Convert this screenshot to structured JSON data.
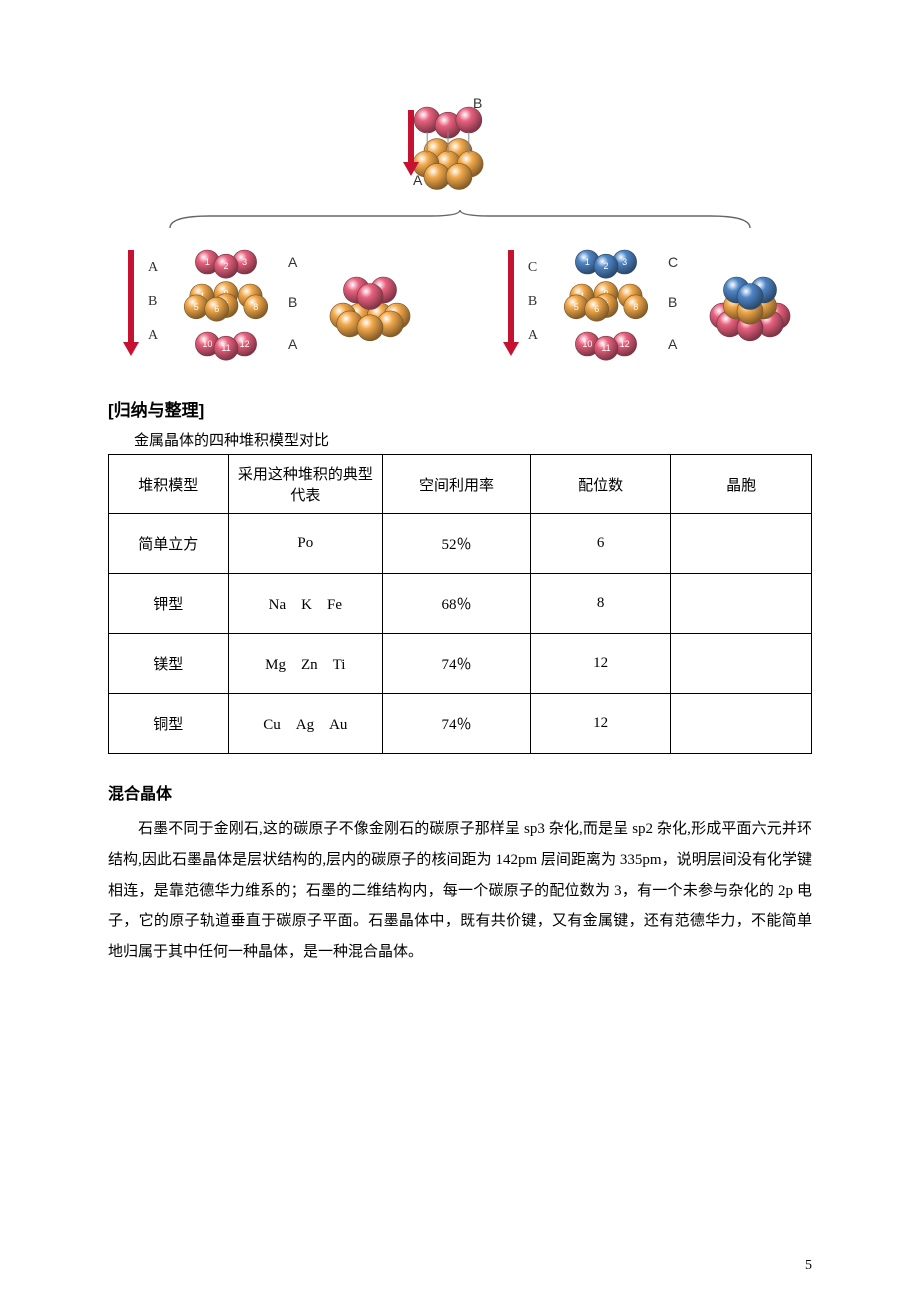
{
  "diagram": {
    "top": {
      "labels": {
        "upper": "B",
        "lower": "A"
      },
      "arrow_color": "#c41230",
      "upper_row_color": "#e8617f",
      "lower_row_color": "#f2a94b"
    },
    "brace_color": "#666666",
    "left_stack": {
      "side_labels": [
        "A",
        "B",
        "A"
      ],
      "row_labels": [
        "A",
        "B",
        "A"
      ],
      "arrow_color": "#c41230",
      "row1_color": "#e8617f",
      "row2_color": "#f2a94b",
      "row3_color": "#e8617f",
      "numbers": {
        "r1": [
          "1",
          "2",
          "3"
        ],
        "r2": [
          "4",
          "9",
          "",
          "5",
          "7",
          "8",
          "6"
        ],
        "r3": [
          "10",
          "11",
          "12"
        ]
      }
    },
    "left_cluster": {
      "top_color": "#e8617f",
      "bottom_color": "#f2a94b"
    },
    "right_stack": {
      "side_labels": [
        "C",
        "B",
        "A"
      ],
      "row_labels": [
        "C",
        "B",
        "A"
      ],
      "arrow_color": "#c41230",
      "row1_color": "#4f86c6",
      "row2_color": "#f2a94b",
      "row3_color": "#e8617f",
      "numbers": {
        "r1": [
          "1",
          "2",
          "3"
        ],
        "r2": [
          "4",
          "9",
          "",
          "5",
          "7",
          "8",
          "6"
        ],
        "r3": [
          "10",
          "11",
          "12"
        ]
      }
    },
    "right_cluster": {
      "top_color": "#4f86c6",
      "bottom_color_upper": "#f2a94b",
      "bottom_color_lower": "#e8617f"
    },
    "label_fontsize": 14,
    "number_fontsize": 9,
    "number_color": "#ffffff"
  },
  "section_title": "[归纳与整理]",
  "table_caption": "金属晶体的四种堆积模型对比",
  "table": {
    "headers": [
      "堆积模型",
      "采用这种堆积的典型代表",
      "空间利用率",
      "配位数",
      "晶胞"
    ],
    "rows": [
      {
        "model": "简单立方",
        "rep": "Po",
        "eff": "52％",
        "coord": "6",
        "cell": ""
      },
      {
        "model": "钾型",
        "rep": "Na　K　Fe",
        "eff": "68％",
        "coord": "8",
        "cell": ""
      },
      {
        "model": "镁型",
        "rep": "Mg　Zn　Ti",
        "eff": "74％",
        "coord": "12",
        "cell": ""
      },
      {
        "model": "铜型",
        "rep": "Cu　Ag　Au",
        "eff": "74％",
        "coord": "12",
        "cell": ""
      }
    ]
  },
  "mixed_crystal": {
    "heading": "混合晶体",
    "paragraph": "石墨不同于金刚石,这的碳原子不像金刚石的碳原子那样呈 sp3 杂化,而是呈 sp2 杂化,形成平面六元并环结构,因此石墨晶体是层状结构的,层内的碳原子的核间距为 142pm 层间距离为 335pm，说明层间没有化学键相连，是靠范德华力维系的；石墨的二维结构内，每一个碳原子的配位数为 3，有一个未参与杂化的 2p 电子，它的原子轨道垂直于碳原子平面。石墨晶体中，既有共价键，又有金属键，还有范德华力，不能简单地归属于其中任何一种晶体，是一种混合晶体。"
  },
  "page_number": "5"
}
